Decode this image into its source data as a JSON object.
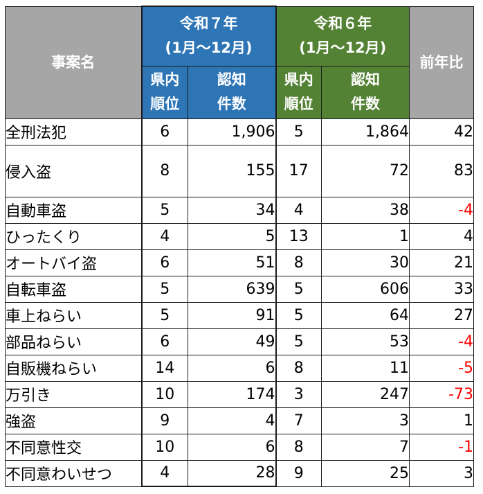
{
  "table": {
    "header": {
      "category": "事案名",
      "r7_line1": "令和７年",
      "r7_line2": "(1月～12月)",
      "r6_line1": "令和６年",
      "r6_line2": "(1月～12月)",
      "diff": "前年比",
      "rank_line1": "県内",
      "rank_line2": "順位",
      "count_line1": "認知",
      "count_line2": "件数"
    },
    "rows": [
      {
        "name": "全刑法犯",
        "r7_rank": "6",
        "r7_count": "1,906",
        "r6_rank": "5",
        "r6_count": "1,864",
        "diff": "42",
        "negative": false
      },
      {
        "name": "侵入盗",
        "r7_rank": "8",
        "r7_count": "155",
        "r6_rank": "17",
        "r6_count": "72",
        "diff": "83",
        "negative": false
      },
      {
        "name": "自動車盗",
        "r7_rank": "5",
        "r7_count": "34",
        "r6_rank": "4",
        "r6_count": "38",
        "diff": "-4",
        "negative": true
      },
      {
        "name": "ひったくり",
        "r7_rank": "4",
        "r7_count": "5",
        "r6_rank": "13",
        "r6_count": "1",
        "diff": "4",
        "negative": false
      },
      {
        "name": "オートバイ盗",
        "r7_rank": "6",
        "r7_count": "51",
        "r6_rank": "8",
        "r6_count": "30",
        "diff": "21",
        "negative": false
      },
      {
        "name": "自転車盗",
        "r7_rank": "5",
        "r7_count": "639",
        "r6_rank": "5",
        "r6_count": "606",
        "diff": "33",
        "negative": false
      },
      {
        "name": "車上ねらい",
        "r7_rank": "5",
        "r7_count": "91",
        "r6_rank": "5",
        "r6_count": "64",
        "diff": "27",
        "negative": false
      },
      {
        "name": "部品ねらい",
        "r7_rank": "6",
        "r7_count": "49",
        "r6_rank": "5",
        "r6_count": "53",
        "diff": "-4",
        "negative": true
      },
      {
        "name": "自販機ねらい",
        "r7_rank": "14",
        "r7_count": "6",
        "r6_rank": "8",
        "r6_count": "11",
        "diff": "-5",
        "negative": true
      },
      {
        "name": "万引き",
        "r7_rank": "10",
        "r7_count": "174",
        "r6_rank": "3",
        "r6_count": "247",
        "diff": "-73",
        "negative": true
      },
      {
        "name": "強盗",
        "r7_rank": "9",
        "r7_count": "4",
        "r6_rank": "7",
        "r6_count": "3",
        "diff": "1",
        "negative": false
      },
      {
        "name": "不同意性交",
        "r7_rank": "10",
        "r7_count": "6",
        "r6_rank": "8",
        "r6_count": "7",
        "diff": "-1",
        "negative": true
      },
      {
        "name": "不同意わいせつ",
        "r7_rank": "4",
        "r7_count": "28",
        "r6_rank": "9",
        "r6_count": "25",
        "diff": "3",
        "negative": false
      }
    ],
    "colors": {
      "header_gray": "#a6a6a6",
      "header_blue": "#2e75b6",
      "header_green": "#548235",
      "negative": "#ff0000"
    }
  }
}
